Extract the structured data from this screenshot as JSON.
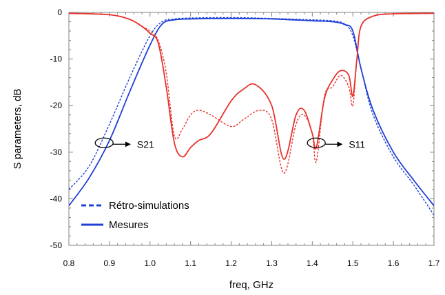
{
  "chart_data": {
    "type": "line",
    "xlabel": "freq, GHz",
    "ylabel": "S parameters, dB",
    "xlim": [
      0.8,
      1.7
    ],
    "ylim": [
      -50,
      0
    ],
    "xticks": [
      "0.8",
      "0.9",
      "1.0",
      "1.1",
      "1.2",
      "1.3",
      "1.4",
      "1.5",
      "1.6",
      "1.7"
    ],
    "yticks": [
      "0",
      "-10",
      "-20",
      "-30",
      "-40",
      "-50"
    ],
    "xtick_values": [
      0.8,
      0.9,
      1.0,
      1.1,
      1.2,
      1.3,
      1.4,
      1.5,
      1.6,
      1.7
    ],
    "ytick_values": [
      0,
      -10,
      -20,
      -30,
      -40,
      -50
    ],
    "grid": false,
    "legend_position": "bottom-left",
    "legend": [
      {
        "label": "Rétro-simulations",
        "style": "dashed",
        "color": "#1f3fd6"
      },
      {
        "label": "Mesures",
        "style": "solid",
        "color": "#1f3fd6"
      }
    ],
    "annotations": [
      {
        "text": "S21",
        "target": [
          0.887,
          -28.0
        ],
        "text_at": [
          0.968,
          -29.5
        ]
      },
      {
        "text": "S11",
        "target": [
          1.41,
          -28.0
        ],
        "text_at": [
          1.49,
          -29.5
        ]
      }
    ],
    "series": [
      {
        "color": "#1f3fd6",
        "style": "dashed",
        "x": [
          0.8,
          0.85,
          0.9,
          0.95,
          1.0,
          1.03,
          1.06,
          1.1,
          1.2,
          1.3,
          1.4,
          1.45,
          1.48,
          1.5,
          1.52,
          1.55,
          1.6,
          1.65,
          1.7
        ],
        "y": [
          -38.0,
          -33.0,
          -24.0,
          -14.0,
          -5.0,
          -2.0,
          -1.4,
          -1.2,
          -1.1,
          -1.3,
          -1.6,
          -1.8,
          -2.5,
          -5.0,
          -12.0,
          -22.0,
          -31.0,
          -37.0,
          -43.5
        ]
      },
      {
        "color": "#1f3fd6",
        "style": "solid",
        "x": [
          0.8,
          0.85,
          0.9,
          0.95,
          1.0,
          1.03,
          1.06,
          1.1,
          1.2,
          1.3,
          1.4,
          1.45,
          1.48,
          1.5,
          1.52,
          1.55,
          1.6,
          1.65,
          1.7
        ],
        "y": [
          -41.5,
          -35.5,
          -27.5,
          -17.0,
          -7.0,
          -2.5,
          -1.6,
          -1.4,
          -1.3,
          -1.4,
          -1.8,
          -2.0,
          -2.6,
          -4.0,
          -12.0,
          -21.0,
          -30.0,
          -36.0,
          -41.5
        ]
      },
      {
        "color": "#e8322c",
        "style": "dashed",
        "x": [
          0.8,
          0.9,
          0.95,
          0.98,
          1.0,
          1.02,
          1.04,
          1.06,
          1.08,
          1.1,
          1.12,
          1.15,
          1.2,
          1.23,
          1.27,
          1.3,
          1.33,
          1.36,
          1.38,
          1.4,
          1.41,
          1.43,
          1.45,
          1.47,
          1.49,
          1.5,
          1.51,
          1.52,
          1.55,
          1.6,
          1.7
        ],
        "y": [
          -0.2,
          -0.5,
          -1.5,
          -3.0,
          -4.0,
          -6.0,
          -13.0,
          -26.5,
          -25.0,
          -22.0,
          -21.0,
          -22.0,
          -24.5,
          -23.0,
          -21.0,
          -23.0,
          -34.5,
          -24.0,
          -22.0,
          -26.0,
          -32.0,
          -18.0,
          -16.0,
          -13.5,
          -16.0,
          -20.0,
          -10.0,
          -3.0,
          -0.8,
          -0.3,
          -0.2
        ]
      },
      {
        "color": "#e8322c",
        "style": "solid",
        "x": [
          0.8,
          0.9,
          0.95,
          0.98,
          1.0,
          1.02,
          1.04,
          1.06,
          1.08,
          1.1,
          1.12,
          1.15,
          1.2,
          1.23,
          1.26,
          1.3,
          1.33,
          1.36,
          1.38,
          1.4,
          1.41,
          1.43,
          1.45,
          1.47,
          1.49,
          1.5,
          1.51,
          1.52,
          1.55,
          1.6,
          1.7
        ],
        "y": [
          -0.2,
          -0.5,
          -1.5,
          -3.0,
          -4.5,
          -6.5,
          -16.0,
          -28.0,
          -31.0,
          -29.0,
          -27.5,
          -26.0,
          -19.0,
          -16.5,
          -15.5,
          -20.0,
          -31.5,
          -22.0,
          -21.0,
          -26.0,
          -29.0,
          -18.5,
          -14.5,
          -12.5,
          -13.5,
          -18.0,
          -10.0,
          -3.0,
          -0.8,
          -0.3,
          -0.2
        ]
      }
    ]
  }
}
